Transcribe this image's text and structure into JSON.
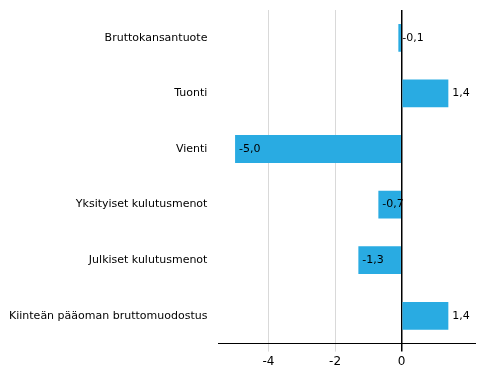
{
  "chart_data": {
    "type": "bar",
    "orientation": "horizontal",
    "categories": [
      "Kiinteän pääoman bruttomuodostus",
      "Julkiset kulutusmenot",
      "Yksityiset kulutusmenot",
      "Vienti",
      "Tuonti",
      "Bruttokansantuote"
    ],
    "values": [
      1.4,
      -1.3,
      -0.7,
      -5.0,
      1.4,
      -0.1
    ],
    "value_labels": [
      "1,4",
      "-1,3",
      "-0,7",
      "-5,0",
      "1,4",
      "-0,1"
    ],
    "data_labels": true,
    "color": "#29abe2",
    "xlim": [
      -5.5,
      2.2
    ],
    "xticks": [
      -4,
      -2,
      0
    ],
    "grid": true
  }
}
